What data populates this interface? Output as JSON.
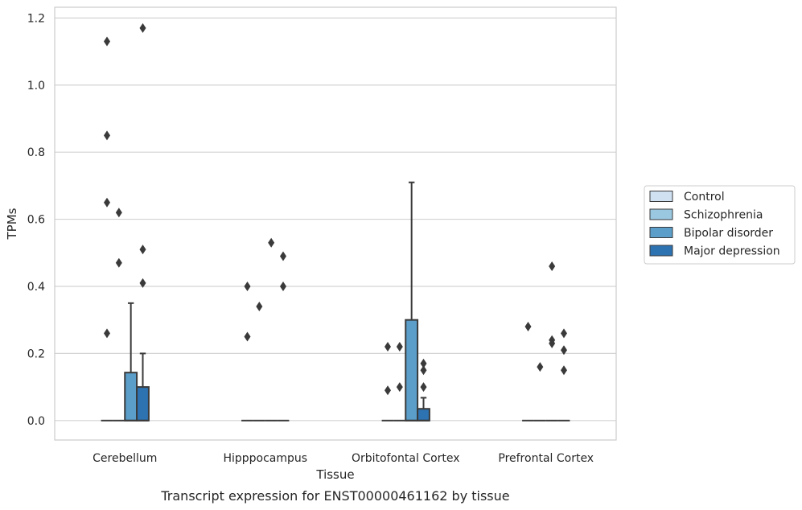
{
  "chart_data": {
    "type": "box",
    "title": "",
    "caption": "Transcript expression for ENST00000461162 by tissue",
    "xlabel": "Tissue",
    "ylabel": "TPMs",
    "ylim": [
      -0.058,
      1.232
    ],
    "yticks": [
      0.0,
      0.2,
      0.4,
      0.6,
      0.8,
      1.0,
      1.2
    ],
    "ytick_labels": [
      "0.0",
      "0.2",
      "0.4",
      "0.6",
      "0.8",
      "1.0",
      "1.2"
    ],
    "grid": "horizontal",
    "legend_position": "right",
    "categories": [
      "Cerebellum",
      "Hipppocampus",
      "Orbitofontal Cortex",
      "Prefrontal Cortex"
    ],
    "series": [
      {
        "name": "Control",
        "color": "#d0e2f2",
        "boxes": [
          {
            "q1": 0,
            "median": 0,
            "q3": 0,
            "whisker_low": 0,
            "whisker_high": 0,
            "outliers": [
              1.13,
              0.85,
              0.65,
              0.26
            ]
          },
          {
            "q1": 0,
            "median": 0,
            "q3": 0,
            "whisker_low": 0,
            "whisker_high": 0,
            "outliers": [
              0.4,
              0.25
            ]
          },
          {
            "q1": 0,
            "median": 0,
            "q3": 0,
            "whisker_low": 0,
            "whisker_high": 0,
            "outliers": [
              0.22,
              0.09
            ]
          },
          {
            "q1": 0,
            "median": 0,
            "q3": 0,
            "whisker_low": 0,
            "whisker_high": 0,
            "outliers": [
              0.28
            ]
          }
        ]
      },
      {
        "name": "Schizophrenia",
        "color": "#9ac8e0",
        "boxes": [
          {
            "q1": 0,
            "median": 0,
            "q3": 0,
            "whisker_low": 0,
            "whisker_high": 0,
            "outliers": [
              0.62,
              0.47
            ]
          },
          {
            "q1": 0,
            "median": 0,
            "q3": 0,
            "whisker_low": 0,
            "whisker_high": 0,
            "outliers": [
              0.34
            ]
          },
          {
            "q1": 0,
            "median": 0,
            "q3": 0,
            "whisker_low": 0,
            "whisker_high": 0,
            "outliers": [
              0.22,
              0.1
            ]
          },
          {
            "q1": 0,
            "median": 0,
            "q3": 0,
            "whisker_low": 0,
            "whisker_high": 0,
            "outliers": [
              0.16
            ]
          }
        ]
      },
      {
        "name": "Bipolar disorder",
        "color": "#5a9ec9",
        "boxes": [
          {
            "q1": 0,
            "median": 0,
            "q3": 0.143,
            "whisker_low": 0,
            "whisker_high": 0.35,
            "outliers": []
          },
          {
            "q1": 0,
            "median": 0,
            "q3": 0,
            "whisker_low": 0,
            "whisker_high": 0,
            "outliers": [
              0.53
            ]
          },
          {
            "q1": 0,
            "median": 0,
            "q3": 0.3,
            "whisker_low": 0,
            "whisker_high": 0.71,
            "outliers": []
          },
          {
            "q1": 0,
            "median": 0,
            "q3": 0,
            "whisker_low": 0,
            "whisker_high": 0,
            "outliers": [
              0.46,
              0.24,
              0.23
            ]
          }
        ]
      },
      {
        "name": "Major depression",
        "color": "#2d72b1",
        "boxes": [
          {
            "q1": 0,
            "median": 0,
            "q3": 0.1,
            "whisker_low": 0,
            "whisker_high": 0.2,
            "outliers": [
              1.17,
              0.51,
              0.41
            ]
          },
          {
            "q1": 0,
            "median": 0,
            "q3": 0,
            "whisker_low": 0,
            "whisker_high": 0,
            "outliers": [
              0.49,
              0.4
            ]
          },
          {
            "q1": 0,
            "median": 0,
            "q3": 0.035,
            "whisker_low": 0,
            "whisker_high": 0.068,
            "outliers": [
              0.17,
              0.15,
              0.1
            ]
          },
          {
            "q1": 0,
            "median": 0,
            "q3": 0,
            "whisker_low": 0,
            "whisker_high": 0,
            "outliers": [
              0.26,
              0.21,
              0.15
            ]
          }
        ]
      }
    ]
  }
}
